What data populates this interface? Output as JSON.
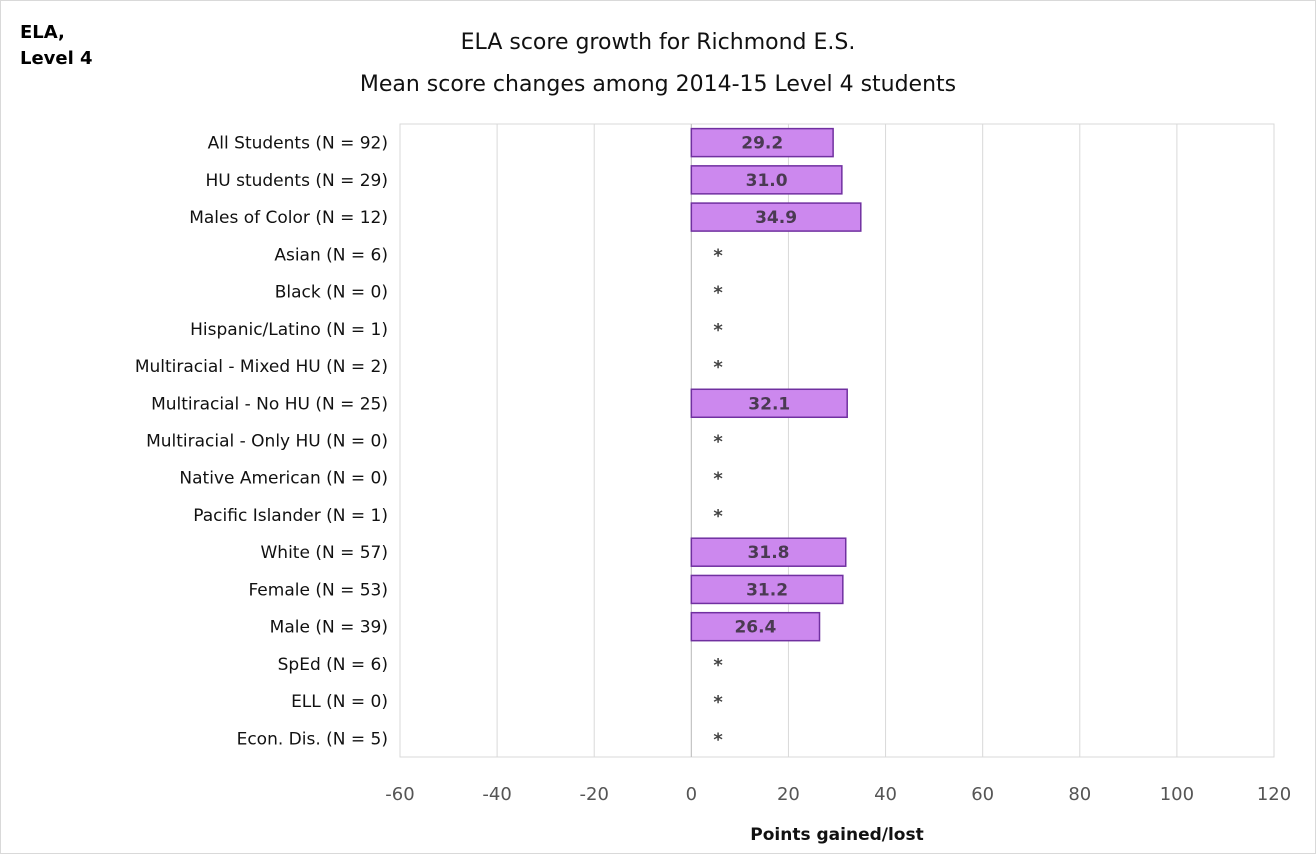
{
  "corner_label": [
    "ELA,",
    "Level 4"
  ],
  "chart_data": {
    "type": "bar",
    "orientation": "horizontal",
    "title": "ELA score growth for Richmond E.S.",
    "subtitle": "Mean score changes among 2014-15 Level 4 students",
    "xlabel": "Points gained/lost",
    "xlim": [
      -60,
      120
    ],
    "xticks": [
      -60,
      -40,
      -20,
      0,
      20,
      40,
      60,
      80,
      100,
      120
    ],
    "grid": true,
    "bar_color": "#cc88ee",
    "bar_edge_color": "#7030a0",
    "suppressed_marker": "*",
    "categories": [
      "All Students (N = 92)",
      "HU students (N = 29)",
      "Males of Color (N = 12)",
      "Asian (N = 6)",
      "Black (N = 0)",
      "Hispanic/Latino (N = 1)",
      "Multiracial - Mixed HU (N = 2)",
      "Multiracial - No HU (N = 25)",
      "Multiracial - Only HU (N = 0)",
      "Native American (N = 0)",
      "Pacific Islander (N = 1)",
      "White (N = 57)",
      "Female (N = 53)",
      "Male (N = 39)",
      "SpEd (N = 6)",
      "ELL (N = 0)",
      "Econ. Dis. (N = 5)"
    ],
    "values": [
      29.2,
      31.0,
      34.9,
      null,
      null,
      null,
      null,
      32.1,
      null,
      null,
      null,
      31.8,
      31.2,
      26.4,
      null,
      null,
      null
    ],
    "labels": [
      "29.2",
      "31.0",
      "34.9",
      null,
      null,
      null,
      null,
      "32.1",
      null,
      null,
      null,
      "31.8",
      "31.2",
      "26.4",
      null,
      null,
      null
    ]
  }
}
